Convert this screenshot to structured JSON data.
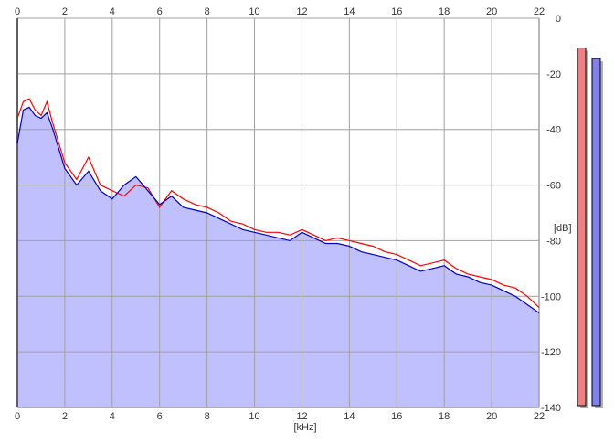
{
  "chart_data": {
    "type": "line",
    "title": "",
    "xlabel": "[kHz]",
    "ylabel": "[dB]",
    "xlim": [
      0,
      22
    ],
    "ylim": [
      -140,
      0
    ],
    "x_ticks": [
      "0",
      "2",
      "4",
      "6",
      "8",
      "10",
      "12",
      "14",
      "16",
      "18",
      "20",
      "22"
    ],
    "y_ticks": [
      "0",
      "-20",
      "-40",
      "-60",
      "-80",
      "-100",
      "-120",
      "-140"
    ],
    "grid": true,
    "background_color": "#ffffff",
    "grid_color": "#a0a0a0",
    "fill_color": "#c0c0ff",
    "series": [
      {
        "color": "#ff0000",
        "x": [
          0,
          0.25,
          0.5,
          0.75,
          1,
          1.25,
          1.5,
          2,
          2.5,
          3,
          3.5,
          4,
          4.5,
          5,
          5.5,
          6,
          6.5,
          7,
          7.5,
          8,
          8.5,
          9,
          9.5,
          10,
          10.5,
          11,
          11.5,
          12,
          12.5,
          13,
          13.5,
          14,
          14.5,
          15,
          15.5,
          16,
          16.5,
          17,
          17.5,
          18,
          18.5,
          19,
          19.5,
          20,
          20.5,
          21,
          21.5,
          22
        ],
        "y": [
          -36,
          -30,
          -29,
          -33,
          -35,
          -30,
          -38,
          -52,
          -58,
          -50,
          -60,
          -62,
          -64,
          -60,
          -61,
          -68,
          -62,
          -65,
          -67,
          -68,
          -70,
          -73,
          -74,
          -76,
          -77,
          -77,
          -78,
          -76,
          -78,
          -80,
          -79,
          -80,
          -81,
          -82,
          -84,
          -85,
          -87,
          -89,
          -88,
          -87,
          -90,
          -92,
          -93,
          -94,
          -96,
          -97,
          -100,
          -104
        ]
      },
      {
        "color": "#0000c0",
        "x": [
          0,
          0.25,
          0.5,
          0.75,
          1,
          1.25,
          1.5,
          2,
          2.5,
          3,
          3.5,
          4,
          4.5,
          5,
          5.5,
          6,
          6.5,
          7,
          7.5,
          8,
          8.5,
          9,
          9.5,
          10,
          10.5,
          11,
          11.5,
          12,
          12.5,
          13,
          13.5,
          14,
          14.5,
          15,
          15.5,
          16,
          16.5,
          17,
          17.5,
          18,
          18.5,
          19,
          19.5,
          20,
          20.5,
          21,
          21.5,
          22
        ],
        "y": [
          -45,
          -33,
          -32,
          -35,
          -36,
          -34,
          -40,
          -54,
          -60,
          -55,
          -62,
          -65,
          -60,
          -57,
          -62,
          -67,
          -64,
          -68,
          -69,
          -70,
          -72,
          -74,
          -76,
          -77,
          -78,
          -79,
          -80,
          -77,
          -79,
          -81,
          -81,
          -82,
          -84,
          -85,
          -86,
          -87,
          -89,
          -91,
          -90,
          -89,
          -92,
          -93,
          -95,
          -96,
          -98,
          -100,
          -103,
          -106
        ]
      }
    ],
    "meters": [
      {
        "color": "#f08080",
        "level_db": -5
      },
      {
        "color": "#8080f0",
        "level_db": -9
      }
    ]
  }
}
